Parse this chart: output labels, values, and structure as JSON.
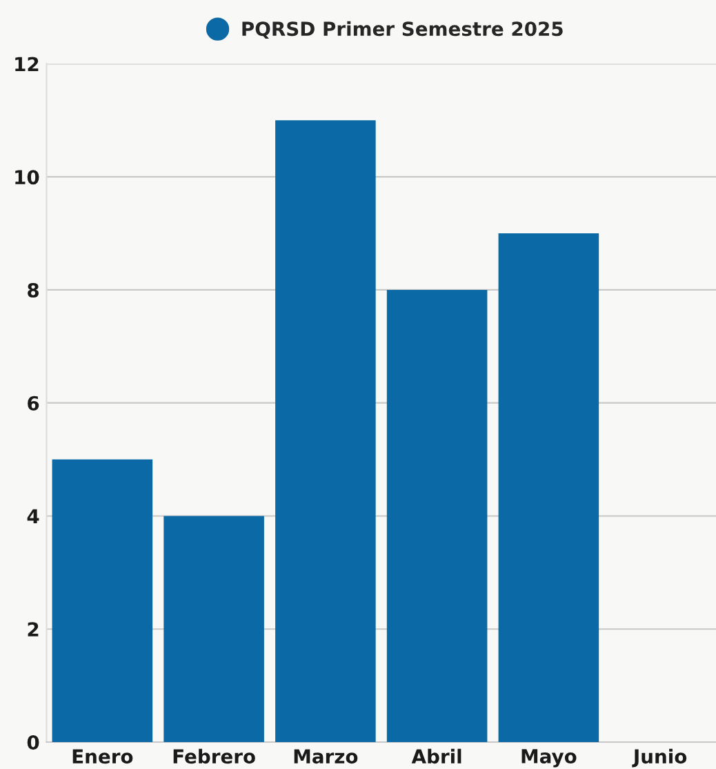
{
  "chart_data": {
    "type": "bar",
    "categories": [
      "Enero",
      "Febrero",
      "Marzo",
      "Abril",
      "Mayo",
      "Junio"
    ],
    "series": [
      {
        "name": "PQRSD Primer Semestre 2025",
        "color": "#0b6aa6",
        "values": [
          5,
          4,
          11,
          8,
          9,
          null
        ]
      }
    ],
    "ylim": [
      0,
      12
    ],
    "yticks": [
      0,
      2,
      4,
      6,
      8,
      10,
      12
    ],
    "grid": "y",
    "legend": "top"
  }
}
